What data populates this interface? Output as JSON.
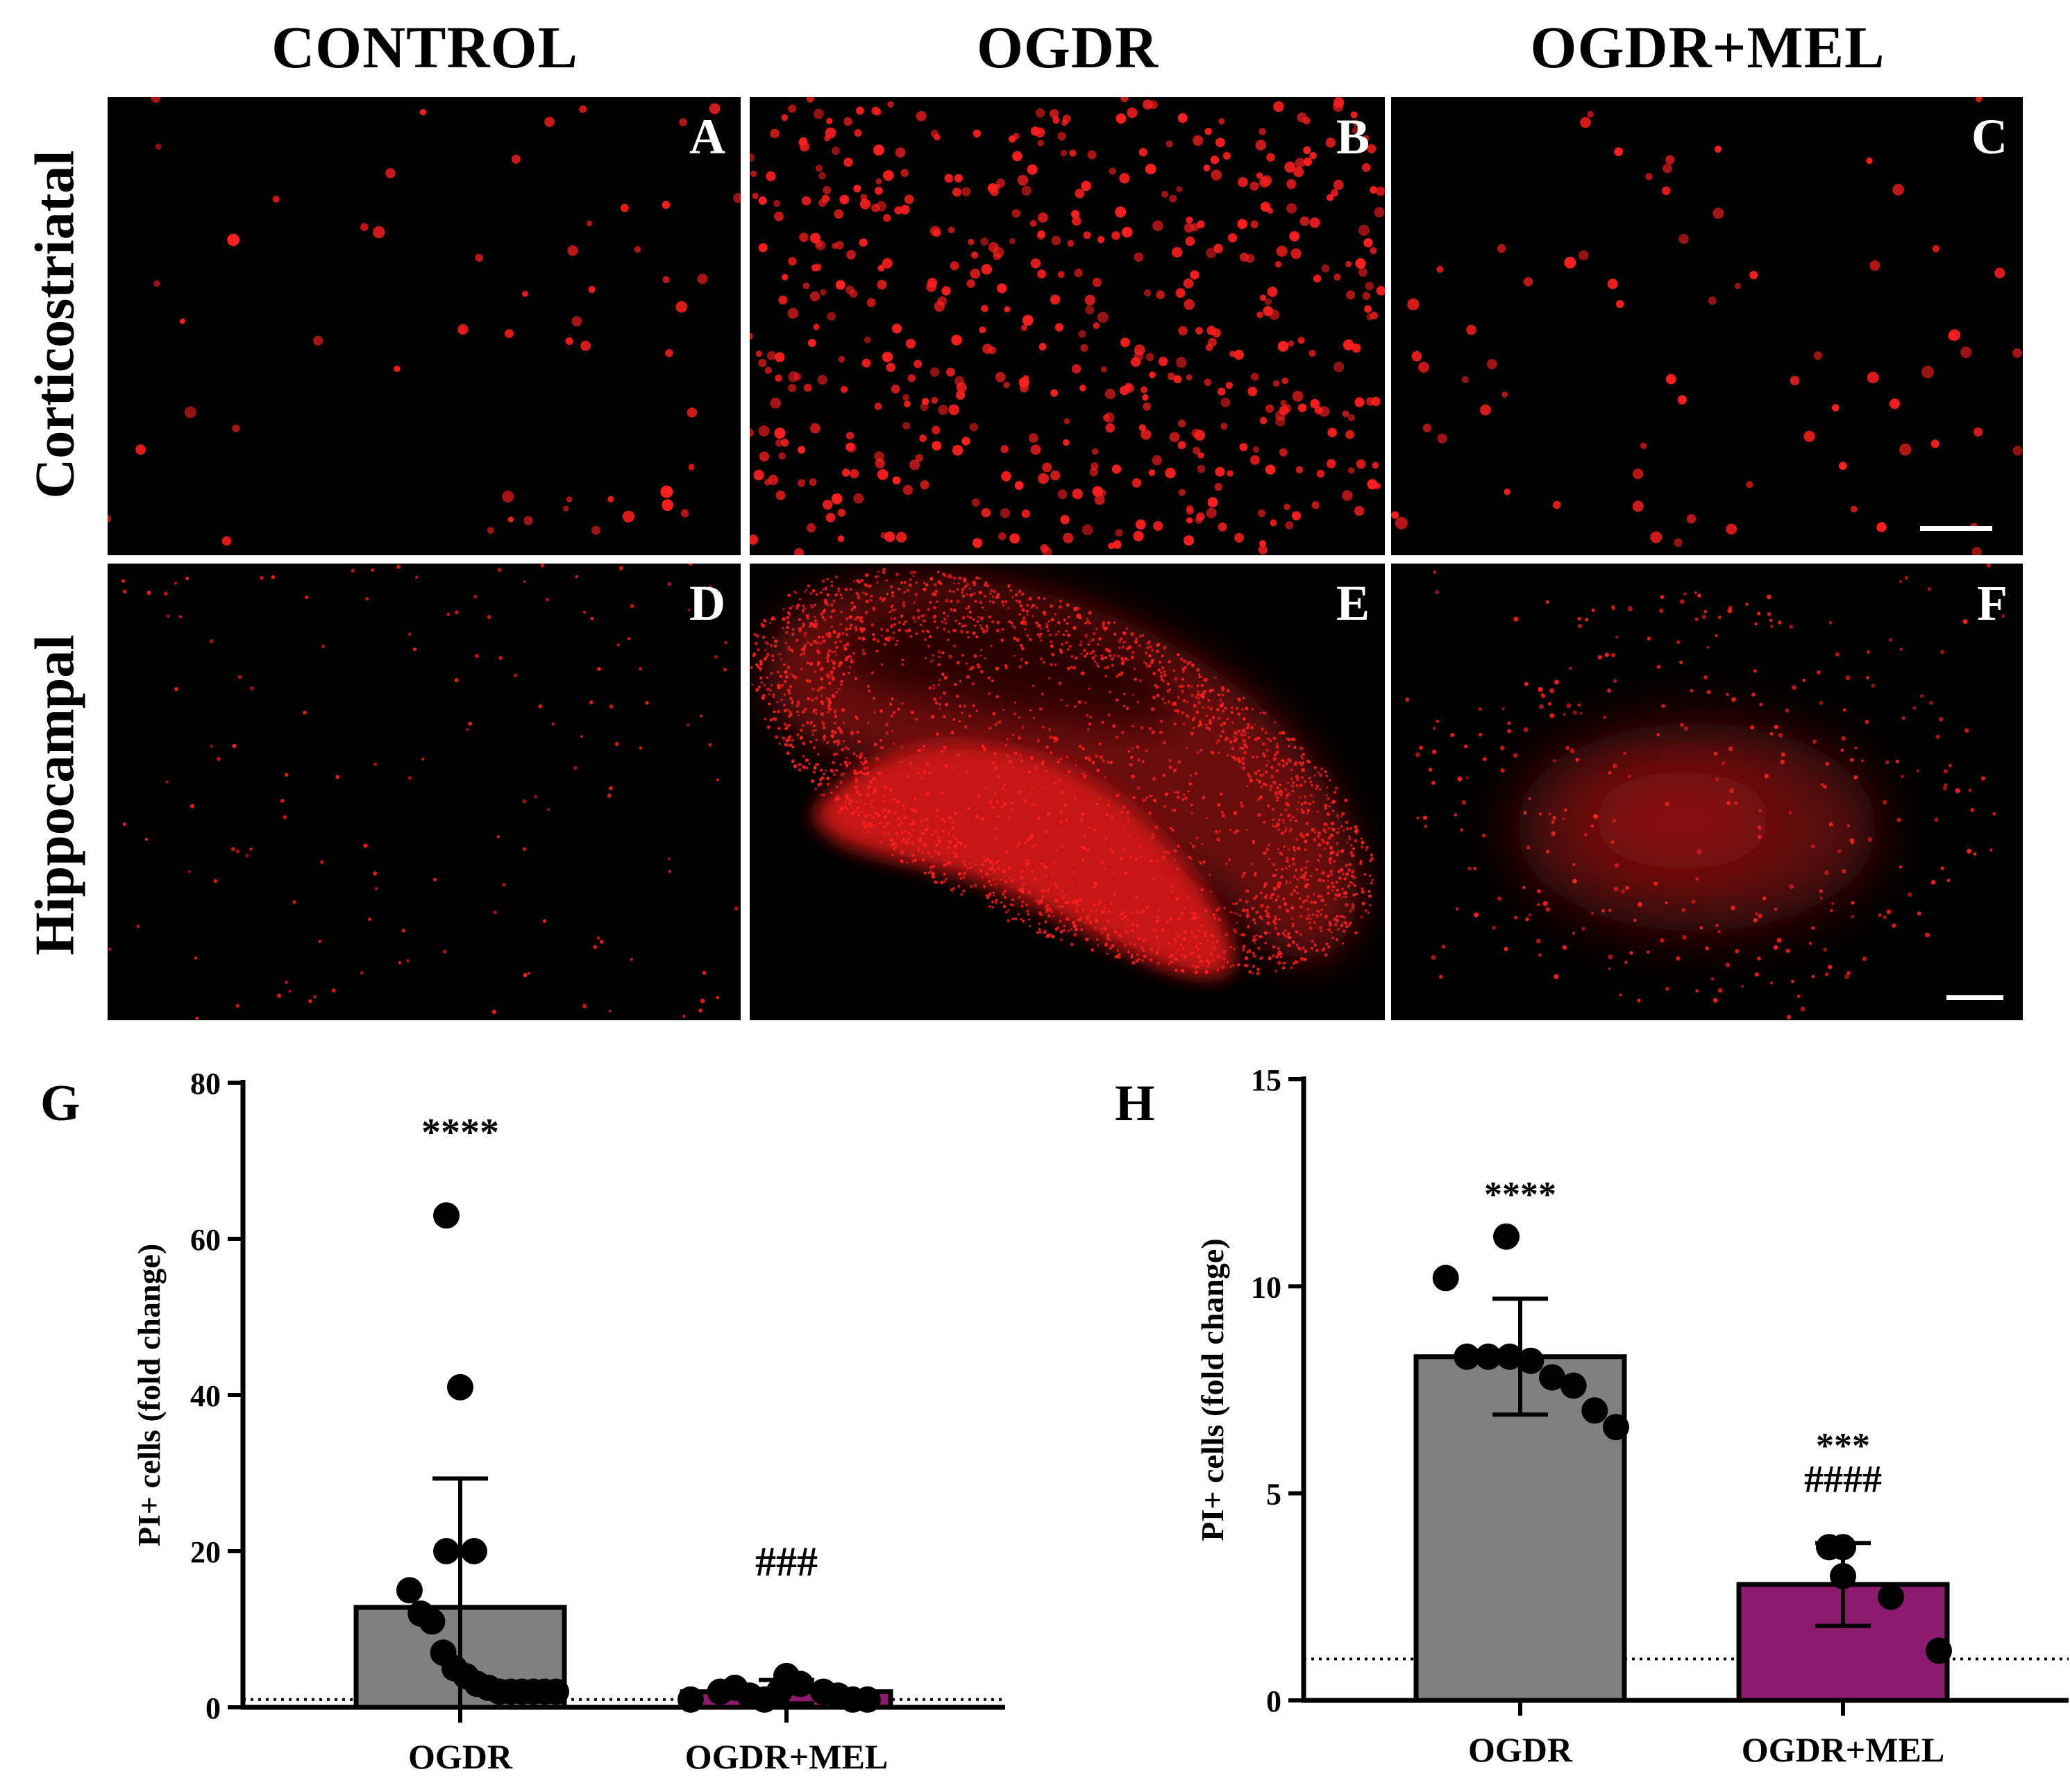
{
  "columns": [
    "CONTROL",
    "OGDR",
    "OGDR+MEL"
  ],
  "rows": [
    "Corticostriatal",
    "Hippocampal"
  ],
  "panels": [
    "A",
    "B",
    "C",
    "D",
    "E",
    "F"
  ],
  "colors": {
    "fluorescence": "#ff2020",
    "ogdr_bar": "#808080",
    "mel_bar": "#8c1a6e",
    "background": "#000000"
  },
  "chart_data": [
    {
      "panel": "G",
      "type": "bar",
      "categories": [
        "OGDR",
        "OGDR+MEL"
      ],
      "values": [
        12.8,
        2.0
      ],
      "error": [
        16.5,
        1.5
      ],
      "ylabel": "PI+ cells (fold change)",
      "ylim": [
        0,
        80
      ],
      "yticks": [
        0,
        20,
        40,
        60,
        80
      ],
      "reference_line": 1,
      "annotations": [
        "****",
        "###"
      ],
      "points": [
        [
          63,
          41,
          20,
          20,
          15,
          12,
          11,
          7,
          5,
          4,
          3,
          2.5,
          2,
          2,
          2,
          2,
          2,
          2
        ],
        [
          1,
          3,
          2,
          2.5,
          1.5,
          1,
          2,
          4,
          3,
          2,
          1.5,
          1,
          1,
          4
        ]
      ]
    },
    {
      "panel": "H",
      "type": "bar",
      "categories": [
        "OGDR",
        "OGDR+MEL"
      ],
      "values": [
        8.3,
        2.8
      ],
      "error": [
        1.4,
        1.0
      ],
      "ylabel": "PI+ cells (fold change)",
      "ylim": [
        0,
        15
      ],
      "yticks": [
        0,
        5,
        10,
        15
      ],
      "reference_line": 1,
      "annotations": [
        "****",
        "***",
        "####"
      ],
      "points": [
        [
          11.2,
          10.2,
          8.3,
          8.3,
          8.3,
          8.2,
          7.8,
          7.6,
          7.0,
          6.6
        ],
        [
          3.7,
          3.7,
          3.0,
          2.5,
          1.2
        ]
      ]
    }
  ]
}
